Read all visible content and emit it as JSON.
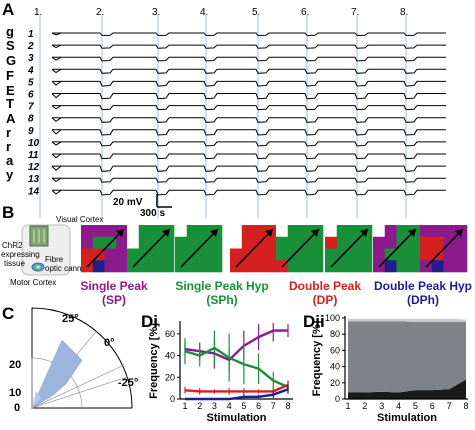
{
  "panel_labels": {
    "a": "A",
    "b": "B",
    "c": "C",
    "di": "Di",
    "dii": "Dii"
  },
  "panel_a": {
    "stimulation_numbers": [
      "1.",
      "2.",
      "3.",
      "4.",
      "5.",
      "6.",
      "7.",
      "8."
    ],
    "channel_numbers": [
      "1",
      "2",
      "3",
      "4",
      "5",
      "6",
      "7",
      "8",
      "9",
      "10",
      "11",
      "12",
      "13",
      "14"
    ],
    "vertical_label": [
      "g",
      "S",
      "G",
      "F",
      "E",
      "T",
      "A",
      "r",
      "r",
      "a",
      "y"
    ],
    "scale_voltage": "20 mV",
    "scale_time": "300 s"
  },
  "panel_b": {
    "schematic": {
      "visual_cortex": "Visual Cortex",
      "chr2": "ChR2",
      "expressing": "expressing",
      "tissue": "tissue",
      "fibre": "Fibre",
      "optic_cannula": "optic cannula",
      "motor_cortex": "Motor Cortex"
    },
    "categories": [
      {
        "name": "Single Peak",
        "abbr": "(SP)",
        "color": "#8b1a8b"
      },
      {
        "name": "Single Peak Hyp",
        "abbr": "(SPh)",
        "color": "#1a8f3a"
      },
      {
        "name": "Double Peak",
        "abbr": "(DP)",
        "color": "#d42020"
      },
      {
        "name": "Double Peak Hyp",
        "abbr": "(DPh)",
        "color": "#1e1e8c"
      }
    ]
  },
  "panel_c": {
    "angle_labels": [
      "25°",
      "0°",
      "-25°"
    ],
    "radial_labels": [
      "20",
      "10",
      "0"
    ]
  },
  "chart_data": [
    {
      "type": "line",
      "x": [
        1,
        2,
        3,
        4,
        5,
        6,
        7,
        8
      ],
      "xlabel": "Stimulation",
      "ylabel": "Frequency [%]",
      "ylim": [
        0,
        70
      ],
      "yticks": [
        0,
        20,
        40,
        60
      ],
      "series": [
        {
          "name": "SP",
          "color": "#8b1a8b",
          "values": [
            46,
            44,
            42,
            36,
            49,
            57,
            63,
            63
          ]
        },
        {
          "name": "SPh",
          "color": "#1a8f3a",
          "values": [
            44,
            40,
            47,
            38,
            32,
            28,
            17,
            11
          ]
        },
        {
          "name": "DP",
          "color": "#d42020",
          "values": [
            8,
            7,
            7,
            7,
            7,
            7,
            7,
            13
          ]
        },
        {
          "name": "DPh",
          "color": "#1e1e8c",
          "values": [
            0,
            0,
            0,
            0,
            2,
            2,
            4,
            9
          ]
        }
      ]
    },
    {
      "type": "area",
      "x": [
        1,
        2,
        3,
        4,
        5,
        6,
        7,
        8
      ],
      "xlabel": "Stimulation",
      "ylabel": "Frequency [%]",
      "ylim": [
        0,
        100
      ],
      "yticks": [
        0,
        20,
        40,
        60,
        80,
        100
      ],
      "series": [
        {
          "name": "dark",
          "color": "#1a1a1a",
          "values": [
            8,
            8,
            9,
            8,
            11,
            11,
            12,
            24
          ]
        },
        {
          "name": "grey",
          "color": "#7f8387",
          "values": [
            88,
            88,
            87,
            88,
            84,
            84,
            83,
            71
          ]
        },
        {
          "name": "light",
          "color": "#c8cacc",
          "values": [
            3,
            3,
            3,
            3,
            4,
            4,
            4,
            3
          ]
        }
      ]
    }
  ]
}
